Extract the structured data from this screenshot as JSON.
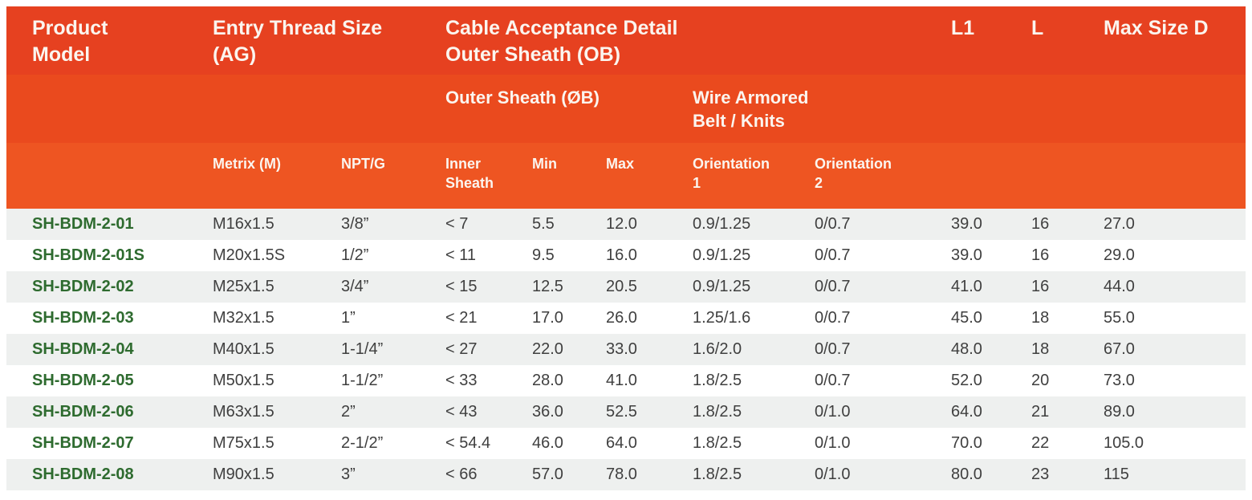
{
  "colors": {
    "band1": "#e64120",
    "band2": "#ea4a1e",
    "band3": "#ee5522",
    "header-text": "#fbf5ef",
    "model-green": "#2e6b2f",
    "stripe": "#eef0ef",
    "text-dark": "#3f3f3f"
  },
  "header": {
    "product_model": "Product\nModel",
    "entry_thread_size": "Entry Thread Size\n(AG)",
    "cable_acceptance": "Cable Acceptance Detail\nOuter Sheath (OB)",
    "l1": "L1",
    "l": "L",
    "max_size_d": "Max Size D",
    "outer_sheath": "Outer Sheath (ØB)",
    "wire_armored": "Wire Armored\nBelt / Knits",
    "metrix": "Metrix (M)",
    "npt_g": "NPT/G",
    "inner_sheath": "Inner\nSheath",
    "min": "Min",
    "max": "Max",
    "orientation1": "Orientation\n1",
    "orientation2": "Orientation\n2"
  },
  "rows": [
    {
      "model": "SH-BDM-2-01",
      "metrix": "M16x1.5",
      "npt": "3/8”",
      "inner": "< 7",
      "min": "5.5",
      "max": "12.0",
      "o1": "0.9/1.25",
      "o2": "0/0.7",
      "l1": "39.0",
      "l": "16",
      "d": "27.0"
    },
    {
      "model": "SH-BDM-2-01S",
      "metrix": "M20x1.5S",
      "npt": "1/2”",
      "inner": "< 11",
      "min": "9.5",
      "max": "16.0",
      "o1": "0.9/1.25",
      "o2": "0/0.7",
      "l1": "39.0",
      "l": "16",
      "d": "29.0"
    },
    {
      "model": "SH-BDM-2-02",
      "metrix": "M25x1.5",
      "npt": "3/4”",
      "inner": "< 15",
      "min": "12.5",
      "max": "20.5",
      "o1": "0.9/1.25",
      "o2": "0/0.7",
      "l1": "41.0",
      "l": "16",
      "d": "44.0"
    },
    {
      "model": "SH-BDM-2-03",
      "metrix": "M32x1.5",
      "npt": "1”",
      "inner": "< 21",
      "min": "17.0",
      "max": "26.0",
      "o1": "1.25/1.6",
      "o2": "0/0.7",
      "l1": "45.0",
      "l": "18",
      "d": "55.0"
    },
    {
      "model": "SH-BDM-2-04",
      "metrix": "M40x1.5",
      "npt": "1-1/4”",
      "inner": "< 27",
      "min": "22.0",
      "max": "33.0",
      "o1": "1.6/2.0",
      "o2": "0/0.7",
      "l1": "48.0",
      "l": "18",
      "d": "67.0"
    },
    {
      "model": "SH-BDM-2-05",
      "metrix": "M50x1.5",
      "npt": "1-1/2”",
      "inner": "< 33",
      "min": "28.0",
      "max": "41.0",
      "o1": "1.8/2.5",
      "o2": "0/0.7",
      "l1": "52.0",
      "l": "20",
      "d": "73.0"
    },
    {
      "model": "SH-BDM-2-06",
      "metrix": "M63x1.5",
      "npt": "2”",
      "inner": "< 43",
      "min": "36.0",
      "max": "52.5",
      "o1": "1.8/2.5",
      "o2": "0/1.0",
      "l1": "64.0",
      "l": "21",
      "d": "89.0"
    },
    {
      "model": "SH-BDM-2-07",
      "metrix": "M75x1.5",
      "npt": "2-1/2”",
      "inner": "< 54.4",
      "min": "46.0",
      "max": "64.0",
      "o1": "1.8/2.5",
      "o2": "0/1.0",
      "l1": "70.0",
      "l": "22",
      "d": "105.0"
    },
    {
      "model": "SH-BDM-2-08",
      "metrix": "M90x1.5",
      "npt": "3”",
      "inner": "< 66",
      "min": "57.0",
      "max": "78.0",
      "o1": "1.8/2.5",
      "o2": "0/1.0",
      "l1": "80.0",
      "l": "23",
      "d": "115"
    }
  ]
}
